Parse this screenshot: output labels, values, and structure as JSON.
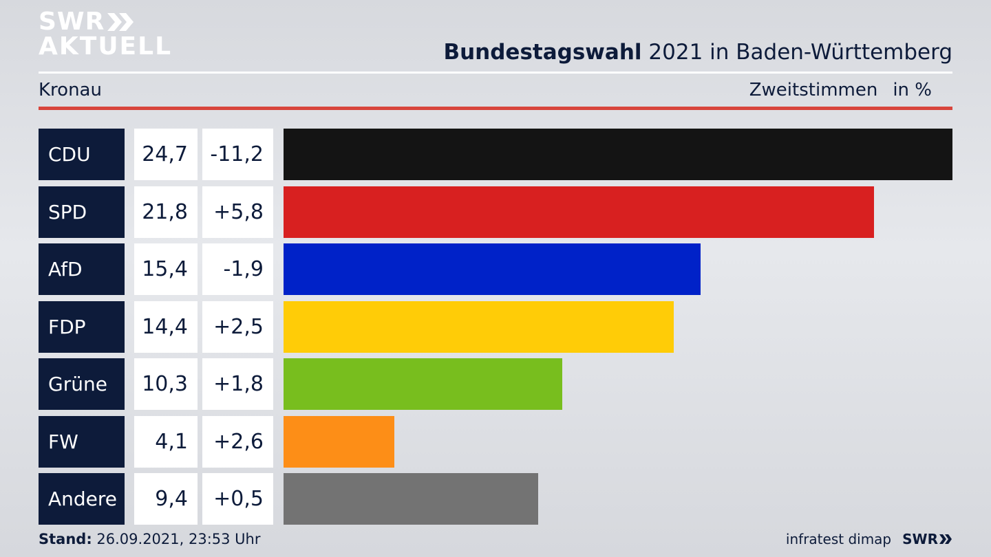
{
  "logo": {
    "line1": "SWR",
    "line2": "AKTUELL"
  },
  "header": {
    "title_bold": "Bundestagswahl",
    "title_rest": " 2021 in Baden-Württemberg",
    "location": "Kronau",
    "measure": "Zweitstimmen",
    "unit": "in %"
  },
  "colors": {
    "brand_navy": "#0d1b3a",
    "rule_red": "#d8453c"
  },
  "chart_data": {
    "type": "bar",
    "orientation": "horizontal",
    "categories": [
      "CDU",
      "SPD",
      "AfD",
      "FDP",
      "Grüne",
      "FW",
      "Andere"
    ],
    "values": [
      24.7,
      21.8,
      15.4,
      14.4,
      10.3,
      4.1,
      9.4
    ],
    "value_labels": [
      "24,7",
      "21,8",
      "15,4",
      "14,4",
      "10,3",
      "4,1",
      "9,4"
    ],
    "diff_labels": [
      "-11,2",
      "+5,8",
      "-1,9",
      "+2,5",
      "+1,8",
      "+2,6",
      "+0,5"
    ],
    "colors": [
      "#141414",
      "#d82020",
      "#0022c8",
      "#ffcc07",
      "#78be1e",
      "#fd8e17",
      "#737373"
    ],
    "xlim": [
      0,
      24.7
    ]
  },
  "footer": {
    "stand_label": "Stand:",
    "stand_value": " 26.09.2021, 23:53 Uhr",
    "source": "infratest dimap",
    "brand": "SWR"
  }
}
